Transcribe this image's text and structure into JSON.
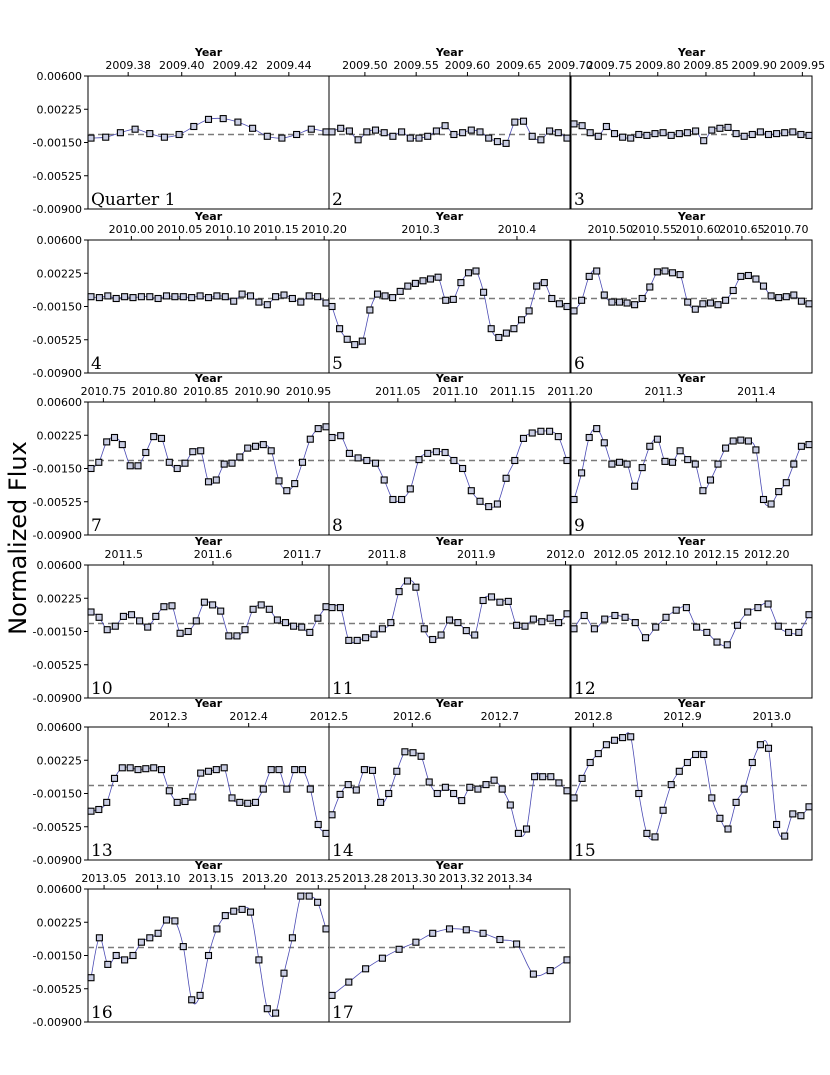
{
  "chart_data": {
    "type": "scatter",
    "ylabel": "Normalized Flux",
    "xlabel": "Year",
    "ylim": [
      -0.009,
      0.006
    ],
    "yticks": [
      "0.00600",
      "0.00225",
      "-0.00150",
      "-0.00525",
      "-0.00900"
    ],
    "ref_value": -0.0006,
    "grid": false,
    "colors": {
      "line": "#4b4bb4",
      "marker_face": "#c9cde3",
      "marker_edge": "#000000",
      "ref_line": "#7a7a7a"
    },
    "panels": [
      {
        "label": "Quarter 1",
        "xlabel": "Year",
        "xlim": [
          2009.365,
          2009.455
        ],
        "xticks": [
          "2009.38",
          "2009.40",
          "2009.42",
          "2009.44"
        ],
        "y": [
          -0.001,
          -0.0009,
          -0.0004,
          0.0,
          -0.0005,
          -0.0009,
          -0.0006,
          0.0003,
          0.0011,
          0.0012,
          0.0008,
          0.0001,
          -0.0008,
          -0.001,
          -0.0006,
          0.0,
          -0.0003
        ]
      },
      {
        "label": "2",
        "xlabel": "Year",
        "xlim": [
          2009.465,
          2009.7
        ],
        "xticks": [
          "2009.50",
          "2009.55",
          "2009.60",
          "2009.65",
          "2009.70"
        ],
        "y": [
          -0.0003,
          0.0001,
          -0.0002,
          -0.0012,
          -0.0003,
          -0.0001,
          -0.0004,
          -0.0008,
          -0.0003,
          -0.001,
          -0.001,
          -0.0008,
          -0.0002,
          0.0004,
          -0.0006,
          -0.0004,
          -0.0001,
          -0.0003,
          -0.001,
          -0.0014,
          -0.0016,
          0.0008,
          0.0009,
          -0.0008,
          -0.0012,
          -0.0002,
          -0.0004,
          -0.001
        ]
      },
      {
        "label": "3",
        "xlabel": "Year",
        "xlim": [
          2009.71,
          2009.96
        ],
        "xticks": [
          "2009.75",
          "2009.80",
          "2009.85",
          "2009.90",
          "2009.95"
        ],
        "y": [
          0.0006,
          0.0004,
          -0.0004,
          -0.0008,
          0.0003,
          -0.0005,
          -0.0009,
          -0.001,
          -0.0006,
          -0.0007,
          -0.0005,
          -0.0004,
          -0.0007,
          -0.0005,
          -0.0004,
          -0.0002,
          -0.0013,
          -0.0001,
          0.0001,
          0.0002,
          -0.0005,
          -0.0008,
          -0.0006,
          -0.0003,
          -0.0006,
          -0.0005,
          -0.0004,
          -0.0003,
          -0.0006,
          -0.0007
        ]
      },
      {
        "label": "4",
        "xlabel": "Year",
        "xlim": [
          2009.955,
          2010.205
        ],
        "xticks": [
          "2010.00",
          "2010.05",
          "2010.10",
          "2010.15",
          "2010.20"
        ],
        "y": [
          -0.0004,
          -0.0005,
          -0.0003,
          -0.0006,
          -0.0004,
          -0.0005,
          -0.0004,
          -0.0004,
          -0.0006,
          -0.0003,
          -0.0004,
          -0.0004,
          -0.0005,
          -0.0003,
          -0.0005,
          -0.0003,
          -0.0004,
          -0.0009,
          -0.0001,
          -0.0003,
          -0.001,
          -0.0013,
          -0.0004,
          -0.0002,
          -0.0006,
          -0.001,
          -0.0003,
          -0.0004,
          -0.0011
        ]
      },
      {
        "label": "5",
        "xlabel": "Year",
        "xlim": [
          2010.205,
          2010.455
        ],
        "xticks": [
          "2010.3",
          "2010.4"
        ],
        "y": [
          -0.0015,
          -0.004,
          -0.0052,
          -0.0058,
          -0.0054,
          -0.0019,
          -0.0001,
          -0.0003,
          -0.0005,
          0.0002,
          0.0008,
          0.0011,
          0.0014,
          0.0016,
          0.0018,
          -0.0008,
          -0.0007,
          0.0012,
          0.0023,
          0.0025,
          0.0001,
          -0.004,
          -0.005,
          -0.0045,
          -0.004,
          -0.003,
          -0.002,
          0.0008,
          0.0012,
          -0.0006,
          -0.0012,
          -0.0015
        ]
      },
      {
        "label": "6",
        "xlabel": "Year",
        "xlim": [
          2010.455,
          2010.73
        ],
        "xticks": [
          "2010.50",
          "2010.55",
          "2010.60",
          "2010.65",
          "2010.70"
        ],
        "y": [
          -0.002,
          -0.0008,
          0.0019,
          0.0025,
          -0.0002,
          -0.001,
          -0.001,
          -0.0011,
          -0.0013,
          -0.0006,
          0.0007,
          0.0024,
          0.0025,
          0.0023,
          0.0021,
          -0.001,
          -0.0018,
          -0.0012,
          -0.0011,
          -0.0013,
          -0.0008,
          0.0003,
          0.0019,
          0.002,
          0.0016,
          0.0008,
          -0.0003,
          -0.0005,
          -0.0004,
          -0.0002,
          -0.0009,
          -0.0012
        ]
      },
      {
        "label": "7",
        "xlabel": "Year",
        "xlim": [
          2010.735,
          2010.97
        ],
        "xticks": [
          "2010.75",
          "2010.80",
          "2010.85",
          "2010.90",
          "2010.95"
        ],
        "y": [
          -0.0015,
          -0.0008,
          0.0015,
          0.002,
          0.0012,
          -0.0012,
          -0.0012,
          0.0003,
          0.0021,
          0.0019,
          -0.0008,
          -0.0015,
          -0.0009,
          0.0004,
          0.0005,
          -0.003,
          -0.0028,
          -0.001,
          -0.0009,
          -0.0002,
          0.0008,
          0.001,
          0.0012,
          0.0005,
          -0.0029,
          -0.004,
          -0.0032,
          -0.0008,
          0.0018,
          0.003,
          0.0032
        ]
      },
      {
        "label": "8",
        "xlabel": "Year",
        "xlim": [
          2010.99,
          2011.2
        ],
        "xticks": [
          "2011.05",
          "2011.10",
          "2011.15",
          "2011.20"
        ],
        "y": [
          0.002,
          0.0022,
          0.0002,
          -0.0003,
          -0.0006,
          -0.0009,
          -0.0028,
          -0.005,
          -0.005,
          -0.0038,
          -0.0005,
          0.0002,
          0.0004,
          0.0003,
          -0.0006,
          -0.0015,
          -0.004,
          -0.0052,
          -0.0058,
          -0.0055,
          -0.0026,
          -0.0006,
          0.0019,
          0.0025,
          0.0027,
          0.0027,
          0.0021,
          -0.0006
        ]
      },
      {
        "label": "9",
        "xlabel": "Year",
        "xlim": [
          2011.2,
          2011.46
        ],
        "xticks": [
          "2011.3",
          "2011.4"
        ],
        "y": [
          -0.005,
          -0.002,
          0.002,
          0.003,
          0.0014,
          -0.001,
          -0.0008,
          -0.001,
          -0.0035,
          -0.0014,
          0.001,
          0.0018,
          -0.0007,
          -0.0008,
          0.0005,
          -0.0005,
          -0.001,
          -0.004,
          -0.0028,
          -0.001,
          0.0008,
          0.0016,
          0.0017,
          0.0016,
          0.0006,
          -0.005,
          -0.0055,
          -0.0041,
          -0.0031,
          -0.001,
          0.001,
          0.0012
        ]
      },
      {
        "label": "10",
        "xlabel": "Year",
        "xlim": [
          2011.46,
          2011.73
        ],
        "xticks": [
          "2011.5",
          "2011.6",
          "2011.7"
        ],
        "y": [
          0.0007,
          0.0001,
          -0.0013,
          -0.0009,
          0.0002,
          0.0004,
          -0.0003,
          -0.001,
          0.0002,
          0.0013,
          0.0014,
          -0.0017,
          -0.0015,
          -0.0003,
          0.0018,
          0.0015,
          0.0008,
          -0.002,
          -0.002,
          -0.0013,
          0.001,
          0.0015,
          0.001,
          -0.0002,
          -0.0005,
          -0.0009,
          -0.001,
          -0.0016,
          0.0,
          0.0013
        ]
      },
      {
        "label": "11",
        "xlabel": "Year",
        "xlim": [
          2011.735,
          2012.005
        ],
        "xticks": [
          "2011.8",
          "2011.9",
          "2012.0"
        ],
        "y": [
          0.0012,
          0.0012,
          -0.0025,
          -0.0025,
          -0.0022,
          -0.0018,
          -0.0012,
          -0.0005,
          0.003,
          0.0042,
          0.0035,
          -0.0012,
          -0.0024,
          -0.0019,
          -0.0002,
          -0.0005,
          -0.0014,
          -0.0019,
          0.002,
          0.0024,
          0.0018,
          0.0019,
          -0.0008,
          -0.0009,
          -0.0001,
          -0.0004,
          0.0,
          -0.0005,
          0.0005
        ]
      },
      {
        "label": "12",
        "xlabel": "Year",
        "xlim": [
          2012.005,
          2012.245
        ],
        "xticks": [
          "2012.05",
          "2012.10",
          "2012.15",
          "2012.20"
        ],
        "y": [
          -0.0012,
          0.0003,
          -0.0012,
          -0.0001,
          0.0003,
          0.0001,
          -0.0005,
          -0.0022,
          -0.001,
          0.0001,
          0.0009,
          0.0012,
          -0.001,
          -0.0016,
          -0.0027,
          -0.003,
          -0.0008,
          0.0007,
          0.0012,
          0.0016,
          -0.0009,
          -0.0016,
          -0.0016,
          0.0004
        ]
      },
      {
        "label": "13",
        "xlabel": "Year",
        "xlim": [
          2012.2,
          2012.5
        ],
        "xticks": [
          "2012.3",
          "2012.4",
          "2012.5"
        ],
        "y": [
          -0.0035,
          -0.0033,
          -0.0025,
          0.0002,
          0.0014,
          0.0014,
          0.0012,
          0.0013,
          0.0014,
          0.0012,
          -0.0012,
          -0.0025,
          -0.0024,
          -0.0019,
          0.0008,
          0.001,
          0.0012,
          0.0014,
          -0.002,
          -0.0025,
          -0.0026,
          -0.0025,
          -0.001,
          0.0012,
          0.0012,
          -0.001,
          0.0012,
          0.0012,
          -0.001,
          -0.005,
          -0.006
        ]
      },
      {
        "label": "14",
        "xlabel": "Year",
        "xlim": [
          2012.505,
          2012.78
        ],
        "xticks": [
          "2012.6",
          "2012.7"
        ],
        "y": [
          -0.0039,
          -0.0016,
          -0.0005,
          -0.0011,
          0.0012,
          0.0011,
          -0.0025,
          -0.0015,
          0.001,
          0.0032,
          0.0031,
          0.0027,
          -0.0002,
          -0.0015,
          -0.0008,
          -0.0015,
          -0.0023,
          -0.0008,
          -0.001,
          -0.0005,
          0.0,
          -0.001,
          -0.0028,
          -0.006,
          -0.0055,
          0.0004,
          0.0004,
          0.0004,
          -0.0003,
          -0.0012
        ]
      },
      {
        "label": "15",
        "xlabel": "Year",
        "xlim": [
          2012.775,
          2013.045
        ],
        "xticks": [
          "2012.8",
          "2012.9",
          "2013.0"
        ],
        "y": [
          -0.002,
          0.0002,
          0.002,
          0.003,
          0.004,
          0.0045,
          0.0048,
          0.0049,
          -0.0015,
          -0.006,
          -0.0064,
          -0.0034,
          -0.0005,
          0.001,
          0.002,
          0.0029,
          0.0029,
          -0.002,
          -0.0043,
          -0.0055,
          -0.0025,
          -0.001,
          0.002,
          0.004,
          0.0036,
          -0.005,
          -0.0063,
          -0.0038,
          -0.004,
          -0.003
        ]
      },
      {
        "label": "16",
        "xlabel": "Year",
        "xlim": [
          2013.035,
          2013.26
        ],
        "xticks": [
          "2013.05",
          "2013.10",
          "2013.15",
          "2013.20",
          "2013.25"
        ],
        "y": [
          -0.004,
          0.0005,
          -0.0025,
          -0.0015,
          -0.002,
          -0.0015,
          0.0,
          0.0005,
          0.001,
          0.0025,
          0.0024,
          -0.0005,
          -0.0065,
          -0.006,
          -0.0015,
          0.0015,
          0.003,
          0.0035,
          0.0037,
          0.0034,
          -0.002,
          -0.0075,
          -0.008,
          -0.0035,
          0.0005,
          0.0052,
          0.0052,
          0.0045,
          0.0015
        ]
      },
      {
        "label": "17",
        "xlabel": "Year",
        "xlim": [
          2013.265,
          2013.365
        ],
        "xticks": [
          "2013.28",
          "2013.30",
          "2013.32",
          "2013.34"
        ],
        "y": [
          -0.006,
          -0.0045,
          -0.003,
          -0.0018,
          -0.0008,
          0.0,
          0.001,
          0.0015,
          0.0014,
          0.001,
          0.0003,
          -0.0002,
          -0.0036,
          -0.0032,
          -0.002
        ]
      }
    ]
  }
}
